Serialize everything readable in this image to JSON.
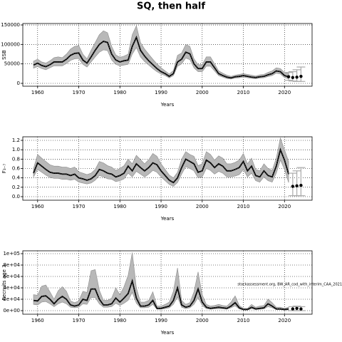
{
  "title": "SQ, then half",
  "chart_data": [
    {
      "type": "line",
      "x_label": "Years",
      "y_label": "SSB",
      "x": [
        1959,
        1960,
        1961,
        1962,
        1963,
        1964,
        1965,
        1966,
        1967,
        1968,
        1969,
        1970,
        1971,
        1972,
        1973,
        1974,
        1975,
        1976,
        1977,
        1978,
        1979,
        1980,
        1981,
        1982,
        1983,
        1984,
        1985,
        1986,
        1987,
        1988,
        1989,
        1990,
        1991,
        1992,
        1993,
        1994,
        1995,
        1996,
        1997,
        1998,
        1999,
        2000,
        2001,
        2002,
        2003,
        2004,
        2005,
        2006,
        2007,
        2008,
        2009,
        2010,
        2011,
        2012,
        2013,
        2014,
        2015,
        2016,
        2017,
        2018,
        2019,
        2020,
        2021
      ],
      "values": [
        47000,
        52000,
        46000,
        43000,
        48000,
        55000,
        55000,
        55000,
        62000,
        72000,
        77000,
        78000,
        60000,
        52000,
        68000,
        85000,
        100000,
        108000,
        105000,
        75000,
        60000,
        55000,
        58000,
        60000,
        95000,
        118000,
        85000,
        70000,
        58000,
        48000,
        38000,
        30000,
        25000,
        18000,
        25000,
        55000,
        62000,
        80000,
        76000,
        50000,
        38000,
        38000,
        55000,
        55000,
        40000,
        25000,
        20000,
        16000,
        14000,
        17000,
        18000,
        20000,
        18000,
        16000,
        15000,
        17000,
        18000,
        22000,
        25000,
        32000,
        30000,
        20000,
        17000
      ],
      "upper": [
        57000,
        62000,
        55000,
        52000,
        58000,
        66000,
        68000,
        66000,
        75000,
        88000,
        95000,
        97000,
        75000,
        63000,
        85000,
        105000,
        125000,
        135000,
        130000,
        95000,
        73000,
        67000,
        70000,
        75000,
        125000,
        148000,
        105000,
        88000,
        75000,
        62000,
        50000,
        40000,
        32000,
        24000,
        33000,
        72000,
        78000,
        100000,
        95000,
        63000,
        48000,
        48000,
        68000,
        68000,
        50000,
        32000,
        26000,
        21000,
        18000,
        21000,
        23000,
        25000,
        23000,
        21000,
        19000,
        22000,
        23000,
        28000,
        32000,
        40000,
        38000,
        28000,
        25000
      ],
      "lower": [
        39000,
        43000,
        38000,
        35000,
        40000,
        45000,
        45000,
        45000,
        51000,
        59000,
        63000,
        64000,
        49000,
        42000,
        55000,
        68000,
        80000,
        86000,
        84000,
        60000,
        49000,
        45000,
        47000,
        49000,
        75000,
        92000,
        68000,
        56000,
        47000,
        38000,
        30000,
        24000,
        20000,
        14000,
        20000,
        44000,
        50000,
        65000,
        61000,
        40000,
        30000,
        30000,
        44000,
        44000,
        32000,
        20000,
        16000,
        12500,
        11000,
        13500,
        14500,
        16000,
        14500,
        13000,
        12000,
        13500,
        14500,
        17500,
        20000,
        26000,
        24000,
        15000,
        12000
      ],
      "projection": {
        "x": [
          2021,
          2022,
          2023,
          2024
        ],
        "values": [
          17000,
          15000,
          16000,
          18000
        ],
        "lower": [
          8000,
          6000,
          5000,
          5000
        ],
        "upper": [
          28000,
          30000,
          35000,
          42000
        ]
      },
      "xlim": [
        1956.4,
        2026.7
      ],
      "xticks": [
        1960,
        1970,
        1980,
        1990,
        2000,
        2010,
        2020
      ],
      "ylim": [
        -7300,
        153700
      ],
      "yticks": [
        0,
        50000,
        100000,
        150000
      ],
      "grid": true,
      "band_color": "#b8b8b8",
      "color": "#000000"
    },
    {
      "type": "line",
      "x_label": "Years",
      "y_label": "F₃₋₇",
      "x": [
        1959,
        1960,
        1961,
        1962,
        1963,
        1964,
        1965,
        1966,
        1967,
        1968,
        1969,
        1970,
        1971,
        1972,
        1973,
        1974,
        1975,
        1976,
        1977,
        1978,
        1979,
        1980,
        1981,
        1982,
        1983,
        1984,
        1985,
        1986,
        1987,
        1988,
        1989,
        1990,
        1991,
        1992,
        1993,
        1994,
        1995,
        1996,
        1997,
        1998,
        1999,
        2000,
        2001,
        2002,
        2003,
        2004,
        2005,
        2006,
        2007,
        2008,
        2009,
        2010,
        2011,
        2012,
        2013,
        2014,
        2015,
        2016,
        2017,
        2018,
        2019,
        2020,
        2021
      ],
      "values": [
        0.5,
        0.72,
        0.65,
        0.58,
        0.52,
        0.5,
        0.5,
        0.48,
        0.48,
        0.45,
        0.48,
        0.4,
        0.38,
        0.35,
        0.38,
        0.45,
        0.58,
        0.55,
        0.5,
        0.48,
        0.42,
        0.45,
        0.5,
        0.65,
        0.55,
        0.7,
        0.62,
        0.55,
        0.62,
        0.72,
        0.68,
        0.55,
        0.45,
        0.35,
        0.3,
        0.4,
        0.62,
        0.8,
        0.75,
        0.7,
        0.52,
        0.55,
        0.78,
        0.72,
        0.62,
        0.7,
        0.65,
        0.55,
        0.55,
        0.58,
        0.62,
        0.75,
        0.55,
        0.65,
        0.45,
        0.42,
        0.55,
        0.45,
        0.42,
        0.65,
        1.0,
        0.78,
        0.48
      ],
      "upper": [
        0.6,
        0.9,
        0.82,
        0.75,
        0.68,
        0.65,
        0.65,
        0.63,
        0.63,
        0.6,
        0.63,
        0.53,
        0.5,
        0.47,
        0.5,
        0.58,
        0.75,
        0.72,
        0.66,
        0.63,
        0.56,
        0.6,
        0.66,
        0.8,
        0.7,
        0.88,
        0.79,
        0.7,
        0.79,
        0.92,
        0.86,
        0.7,
        0.58,
        0.46,
        0.4,
        0.52,
        0.8,
        0.96,
        0.9,
        0.86,
        0.66,
        0.7,
        0.96,
        0.9,
        0.78,
        0.87,
        0.82,
        0.7,
        0.7,
        0.73,
        0.78,
        0.92,
        0.7,
        0.82,
        0.58,
        0.55,
        0.7,
        0.6,
        0.56,
        0.82,
        1.25,
        1.0,
        0.75
      ],
      "lower": [
        0.42,
        0.58,
        0.52,
        0.46,
        0.41,
        0.39,
        0.39,
        0.37,
        0.37,
        0.35,
        0.37,
        0.31,
        0.29,
        0.27,
        0.29,
        0.35,
        0.45,
        0.42,
        0.38,
        0.37,
        0.32,
        0.34,
        0.38,
        0.5,
        0.42,
        0.54,
        0.48,
        0.42,
        0.48,
        0.56,
        0.52,
        0.42,
        0.34,
        0.26,
        0.22,
        0.3,
        0.48,
        0.64,
        0.6,
        0.55,
        0.4,
        0.42,
        0.6,
        0.56,
        0.48,
        0.54,
        0.5,
        0.42,
        0.42,
        0.44,
        0.47,
        0.58,
        0.42,
        0.5,
        0.34,
        0.31,
        0.42,
        0.34,
        0.31,
        0.5,
        0.78,
        0.58,
        0.3
      ],
      "projection": {
        "x": [
          2022,
          2023,
          2024
        ],
        "values": [
          0.22,
          0.23,
          0.24
        ],
        "lower": [
          0.02,
          0.02,
          0.02
        ],
        "upper": [
          0.5,
          0.55,
          0.62
        ]
      },
      "xlim": [
        1956.4,
        2026.7
      ],
      "xticks": [
        1960,
        1970,
        1980,
        1990,
        2000,
        2010,
        2020
      ],
      "ylim": [
        -0.076,
        1.276
      ],
      "yticks": [
        {
          "value": 0,
          "label": "0.0"
        },
        0.2,
        0.4,
        0.6,
        0.8,
        {
          "value": 1,
          "label": "1.0"
        },
        1.2
      ],
      "grid": true,
      "band_color": "#b8b8b8",
      "color": "#000000"
    },
    {
      "type": "line",
      "x_label": "Years",
      "y_label": "Recruits age 3",
      "annotation": "stockassessment.org, BW_AR_cod_with_interim_CAA_2021",
      "x": [
        1959,
        1960,
        1961,
        1962,
        1963,
        1964,
        1965,
        1966,
        1967,
        1968,
        1969,
        1970,
        1971,
        1972,
        1973,
        1974,
        1975,
        1976,
        1977,
        1978,
        1979,
        1980,
        1981,
        1982,
        1983,
        1984,
        1985,
        1986,
        1987,
        1988,
        1989,
        1990,
        1991,
        1992,
        1993,
        1994,
        1995,
        1996,
        1997,
        1998,
        1999,
        2000,
        2001,
        2002,
        2003,
        2004,
        2005,
        2006,
        2007,
        2008,
        2009,
        2010,
        2011,
        2012,
        2013,
        2014,
        2015,
        2016,
        2017,
        2018,
        2019,
        2020,
        2021
      ],
      "values": [
        18000,
        17000,
        25000,
        26000,
        20000,
        12000,
        20000,
        25000,
        20000,
        10000,
        8000,
        10000,
        20000,
        18000,
        38000,
        38000,
        20000,
        10000,
        10000,
        12000,
        22000,
        15000,
        22000,
        30000,
        52000,
        22000,
        8000,
        8000,
        10000,
        18000,
        4000,
        4000,
        6000,
        8000,
        18000,
        40000,
        10000,
        6000,
        8000,
        18000,
        38000,
        15000,
        6000,
        4000,
        5000,
        6000,
        5000,
        4000,
        8000,
        14000,
        5000,
        2000,
        2000,
        6000,
        3000,
        4000,
        5000,
        12000,
        8000,
        3000,
        3000,
        2000,
        3000
      ],
      "upper": [
        28000,
        27000,
        43000,
        45000,
        33000,
        20000,
        35000,
        42000,
        34000,
        17000,
        14000,
        17000,
        34000,
        32000,
        70000,
        72000,
        36000,
        18000,
        18000,
        22000,
        40000,
        28000,
        42000,
        62000,
        102000,
        40000,
        15000,
        15000,
        18000,
        33000,
        8000,
        8000,
        11000,
        15000,
        34000,
        75000,
        18000,
        11000,
        14000,
        33000,
        68000,
        28000,
        11000,
        8000,
        9000,
        11000,
        9000,
        8000,
        15000,
        26000,
        9000,
        4000,
        4000,
        11000,
        6000,
        8000,
        9000,
        20000,
        14000,
        6000,
        6000,
        4000,
        6000
      ],
      "lower": [
        11000,
        10000,
        15000,
        16000,
        12000,
        7000,
        12000,
        15000,
        12000,
        6000,
        5000,
        6000,
        12000,
        11000,
        23000,
        23000,
        12000,
        6000,
        6000,
        7000,
        13000,
        9000,
        13000,
        18000,
        32000,
        13000,
        5000,
        5000,
        6000,
        11000,
        2500,
        2500,
        3500,
        5000,
        11000,
        24000,
        6000,
        3500,
        5000,
        11000,
        23000,
        9000,
        3500,
        2500,
        3000,
        3500,
        3000,
        2500,
        5000,
        8500,
        3000,
        1000,
        1000,
        3500,
        1800,
        2500,
        3000,
        7000,
        5000,
        1800,
        1800,
        1000,
        1500
      ],
      "projection": {
        "x": [
          2022,
          2023,
          2024
        ],
        "values": [
          3000,
          4000,
          3000
        ],
        "lower": [
          0,
          0,
          0
        ],
        "upper": [
          7000,
          8000,
          7000
        ]
      },
      "xlim": [
        1956.4,
        2026.7
      ],
      "xticks": [
        1960,
        1970,
        1980,
        1990,
        2000,
        2010,
        2020
      ],
      "ylim": [
        -6250,
        105000
      ],
      "yticks": [
        {
          "value": 0,
          "label": "0e+00"
        },
        {
          "value": 20000,
          "label": "2e+04"
        },
        {
          "value": 40000,
          "label": "4e+04"
        },
        {
          "value": 60000,
          "label": "6e+04"
        },
        {
          "value": 80000,
          "label": "8e+04"
        },
        {
          "value": 100000,
          "label": "1e+05"
        }
      ],
      "grid": true,
      "band_color": "#b8b8b8",
      "color": "#000000"
    }
  ]
}
